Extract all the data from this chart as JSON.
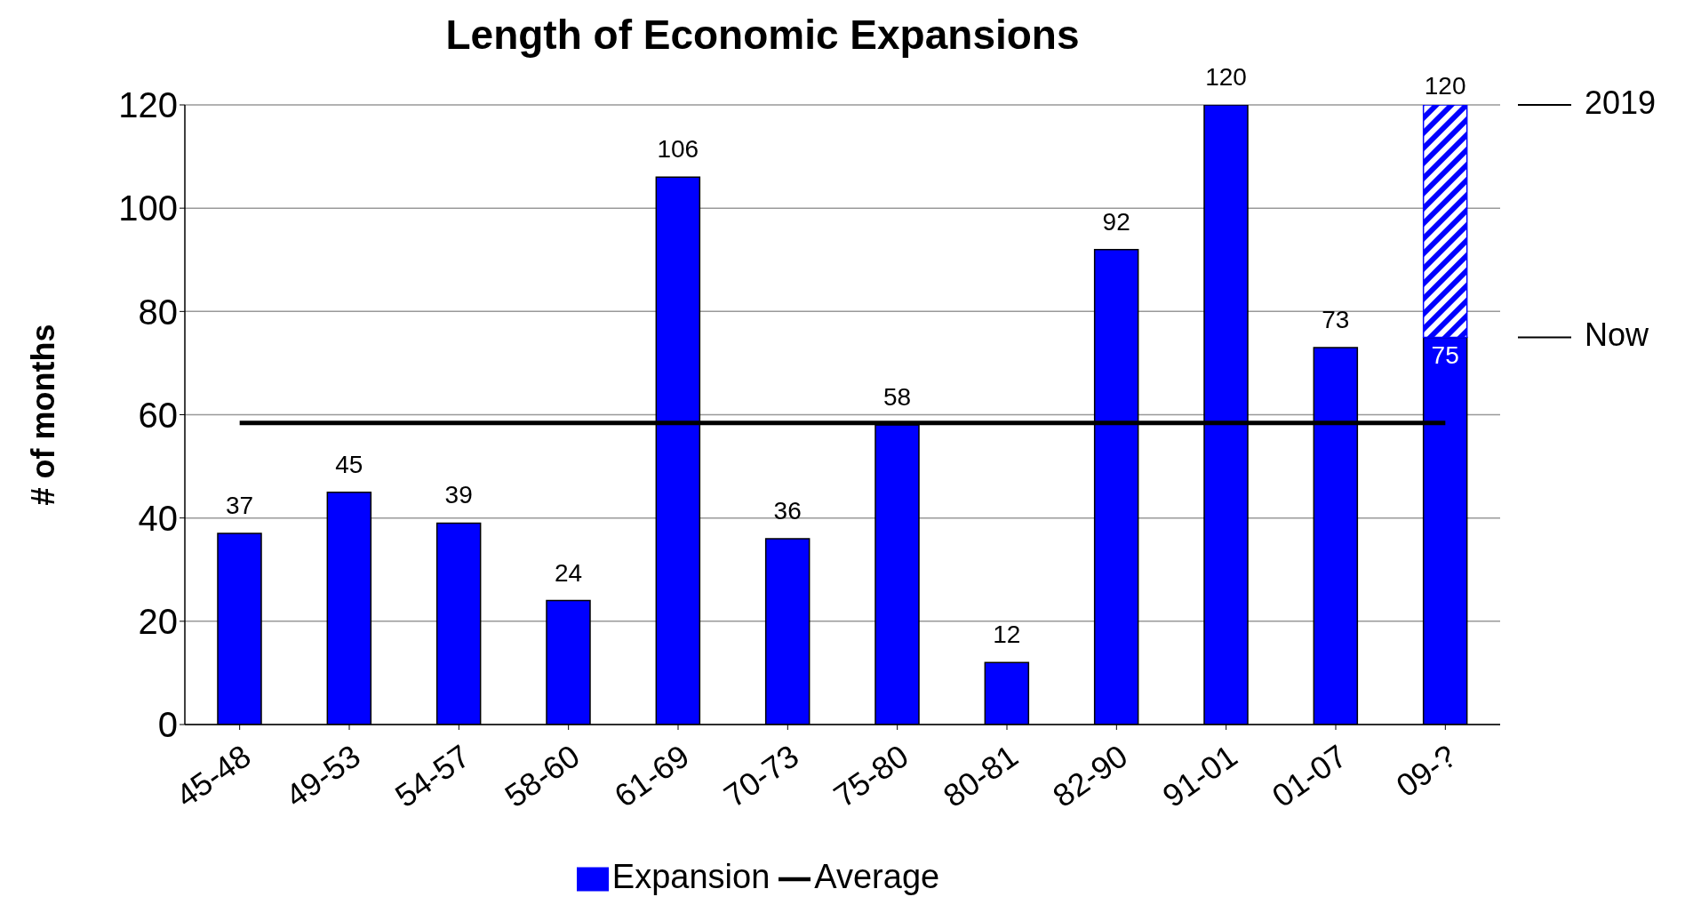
{
  "chart_data": {
    "type": "bar",
    "title": "Length of Economic Expansions",
    "ylabel": "# of months",
    "categories": [
      "45-48",
      "49-53",
      "54-57",
      "58-60",
      "61-69",
      "70-73",
      "75-80",
      "80-81",
      "82-90",
      "91-01",
      "01-07",
      "09-?"
    ],
    "series": [
      {
        "name": "Expansion",
        "color": "#0000ff",
        "values": [
          37,
          45,
          39,
          24,
          106,
          36,
          58,
          12,
          92,
          120,
          73,
          75
        ],
        "value_labels": [
          "37",
          "45",
          "39",
          "24",
          "106",
          "36",
          "58",
          "12",
          "92",
          "120",
          "73",
          "75"
        ]
      },
      {
        "color": "#0000ff",
        "values": [
          null,
          null,
          null,
          null,
          null,
          null,
          null,
          null,
          null,
          null,
          null,
          45
        ]
      },
      {
        "name": "Average",
        "type": "line",
        "color": "#000000",
        "values": [
          58.4,
          58.4,
          58.4,
          58.4,
          58.4,
          58.4,
          58.4,
          58.4,
          58.4,
          58.4,
          58.4,
          58.4
        ]
      }
    ],
    "stacked": true,
    "totals": [
      null,
      null,
      null,
      null,
      null,
      null,
      null,
      null,
      null,
      null,
      null,
      "120"
    ],
    "annotations": [
      "2019",
      "Now"
    ],
    "ylim": [
      0,
      120
    ],
    "yticks": [
      0,
      20,
      40,
      60,
      80,
      100,
      120
    ],
    "grid": "y",
    "legend": "bottom"
  }
}
